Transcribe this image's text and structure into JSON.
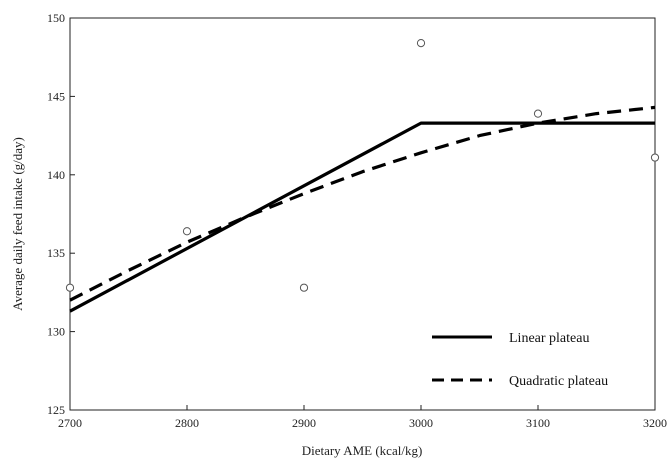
{
  "chart_data": {
    "type": "line",
    "xlabel": "Dietary AME (kcal/kg)",
    "ylabel": "Average daily feed intake (g/day)",
    "xlim": [
      2700,
      3200
    ],
    "ylim": [
      125,
      150
    ],
    "x_ticks": [
      2700,
      2800,
      2900,
      3000,
      3100,
      3200
    ],
    "y_ticks": [
      125,
      130,
      135,
      140,
      145,
      150
    ],
    "grid": false,
    "legend_position": "bottom-right",
    "observed_points": [
      {
        "x": 2700,
        "y": 132.8
      },
      {
        "x": 2800,
        "y": 136.4
      },
      {
        "x": 2900,
        "y": 132.8
      },
      {
        "x": 3000,
        "y": 148.4
      },
      {
        "x": 3100,
        "y": 143.9
      },
      {
        "x": 3200,
        "y": 141.1
      }
    ],
    "series": [
      {
        "name": "Linear plateau",
        "style": "solid",
        "points": [
          {
            "x": 2700,
            "y": 131.3
          },
          {
            "x": 3000,
            "y": 143.3
          },
          {
            "x": 3200,
            "y": 143.3
          }
        ]
      },
      {
        "name": "Quadratic plateau",
        "style": "dashed",
        "points": [
          {
            "x": 2700,
            "y": 132.0
          },
          {
            "x": 2750,
            "y": 133.9
          },
          {
            "x": 2800,
            "y": 135.7
          },
          {
            "x": 2850,
            "y": 137.3
          },
          {
            "x": 2900,
            "y": 138.8
          },
          {
            "x": 2950,
            "y": 140.2
          },
          {
            "x": 3000,
            "y": 141.4
          },
          {
            "x": 3050,
            "y": 142.5
          },
          {
            "x": 3100,
            "y": 143.3
          },
          {
            "x": 3150,
            "y": 143.9
          },
          {
            "x": 3200,
            "y": 144.3
          }
        ]
      }
    ],
    "colors": {
      "lines": "#000000",
      "points_stroke": "#555555",
      "axis": "#222222"
    }
  }
}
